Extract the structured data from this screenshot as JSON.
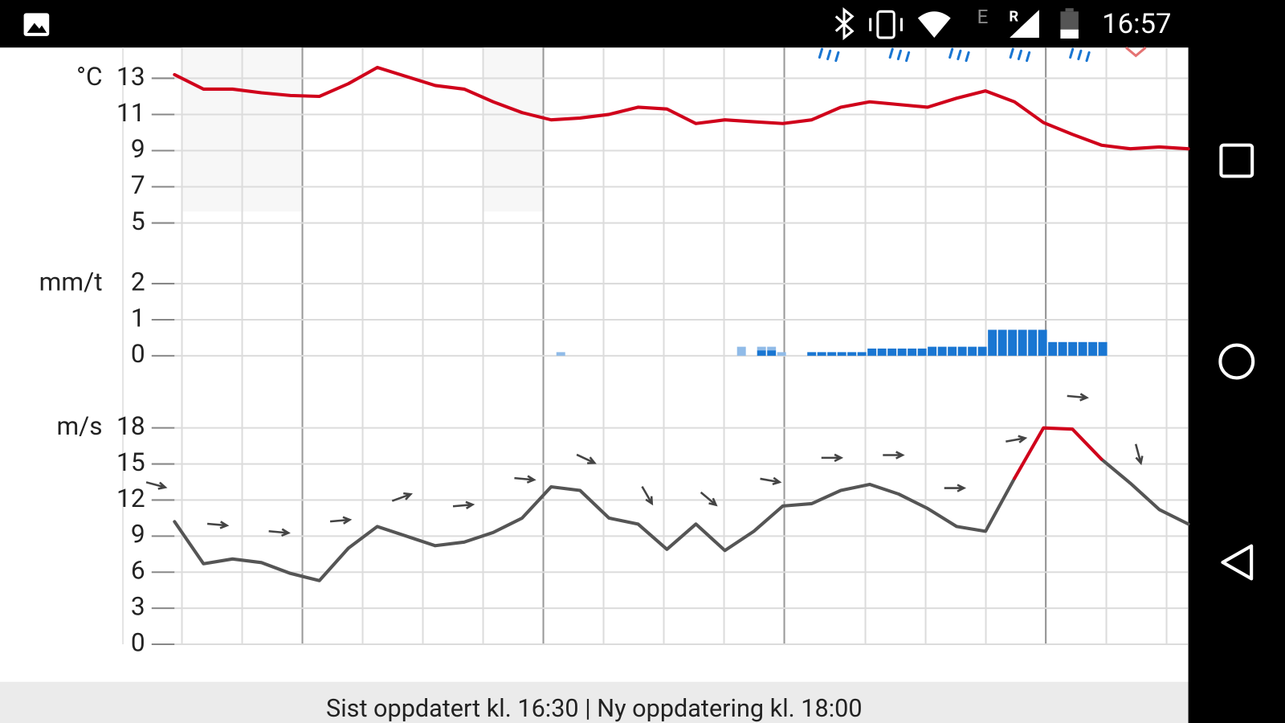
{
  "status_bar": {
    "network": "E",
    "roaming": "R",
    "time": "16:57"
  },
  "chart_data": [
    {
      "type": "line",
      "y_label": "°C",
      "color": "#d0021b",
      "categories": [
        null,
        null,
        null,
        null,
        null,
        null,
        null,
        null,
        null,
        null,
        null,
        null,
        null,
        null,
        null,
        null,
        null,
        null,
        null,
        null,
        null,
        null,
        null,
        null,
        null,
        null,
        null,
        null,
        null,
        null,
        null,
        null,
        null,
        null,
        null,
        null
      ],
      "values": [
        13.2,
        12.4,
        12.4,
        12.2,
        12.05,
        12.0,
        12.7,
        13.6,
        13.1,
        12.6,
        12.4,
        11.7,
        11.1,
        10.7,
        10.8,
        11.0,
        11.4,
        11.3,
        10.5,
        10.7,
        10.6,
        10.5,
        10.7,
        11.4,
        11.7,
        11.55,
        11.4,
        11.9,
        12.3,
        11.7,
        10.55,
        9.9,
        9.3,
        9.1,
        9.2,
        9.1
      ],
      "ylim": [
        5,
        14.7
      ],
      "yticks": [
        5,
        7,
        9,
        11,
        13
      ],
      "grid": true
    },
    {
      "type": "bar",
      "y_label": "mm/t",
      "stacked": true,
      "categories": [
        null,
        null,
        null,
        null,
        null,
        null,
        null,
        null,
        null,
        null,
        null,
        null,
        null,
        null,
        null,
        null,
        null,
        null,
        null,
        null,
        null,
        null,
        null,
        null,
        null,
        null,
        null,
        null,
        null,
        null,
        null,
        null,
        null,
        null,
        null,
        null,
        null,
        null,
        null,
        null,
        null,
        null,
        null,
        null,
        null,
        null,
        null,
        null,
        null,
        null,
        null,
        null,
        null,
        null,
        null,
        null,
        null,
        null,
        null,
        null,
        null,
        null,
        null,
        null,
        null,
        null,
        null,
        null,
        null,
        null,
        null,
        null,
        null,
        null,
        null,
        null,
        null,
        null,
        null,
        null,
        null,
        null,
        null,
        null,
        null,
        null,
        null,
        null,
        null,
        null,
        null,
        null,
        null,
        null,
        null,
        null,
        null,
        null,
        null,
        null,
        null
      ],
      "series": [
        {
          "color": "#1976d2",
          "values": [
            0,
            0,
            0,
            0,
            0,
            0,
            0,
            0,
            0,
            0,
            0,
            0,
            0,
            0,
            0,
            0,
            0,
            0,
            0,
            0,
            0,
            0,
            0,
            0,
            0,
            0,
            0,
            0,
            0,
            0,
            0,
            0,
            0,
            0,
            0,
            0,
            0,
            0,
            0,
            0,
            0,
            0,
            0,
            0,
            0,
            0,
            0,
            0,
            0,
            0,
            0,
            0,
            0,
            0,
            0,
            0,
            0,
            0,
            0.15,
            0.15,
            0,
            0,
            0,
            0.1,
            0.1,
            0.1,
            0.1,
            0.1,
            0.1,
            0.2,
            0.2,
            0.2,
            0.2,
            0.2,
            0.2,
            0.25,
            0.25,
            0.25,
            0.25,
            0.25,
            0.25,
            0.72,
            0.72,
            0.72,
            0.72,
            0.72,
            0.72,
            0.38,
            0.38,
            0.38,
            0.38,
            0.38,
            0.38,
            0,
            0,
            0,
            0,
            0,
            0,
            0,
            0
          ]
        },
        {
          "color": "#90bbe8",
          "values": [
            0,
            0,
            0,
            0,
            0,
            0,
            0,
            0,
            0,
            0,
            0,
            0,
            0,
            0,
            0,
            0,
            0,
            0,
            0,
            0,
            0,
            0,
            0,
            0,
            0,
            0,
            0,
            0,
            0,
            0,
            0,
            0,
            0,
            0,
            0,
            0,
            0,
            0,
            0.1,
            0,
            0,
            0,
            0,
            0,
            0,
            0,
            0,
            0,
            0,
            0,
            0,
            0,
            0,
            0,
            0,
            0,
            0.25,
            0,
            0.1,
            0.1,
            0.1,
            0,
            0,
            0,
            0,
            0,
            0,
            0,
            0,
            0,
            0,
            0,
            0,
            0,
            0,
            0,
            0,
            0,
            0,
            0,
            0,
            0,
            0,
            0,
            0,
            0,
            0,
            0,
            0,
            0,
            0,
            0,
            0,
            0,
            0,
            0,
            0,
            0,
            0,
            0,
            0
          ]
        }
      ],
      "ylim": [
        0,
        2
      ],
      "yticks": [
        0,
        1,
        2
      ],
      "grid": true
    },
    {
      "type": "line",
      "y_label": "m/s",
      "categories": [
        null,
        null,
        null,
        null,
        null,
        null,
        null,
        null,
        null,
        null,
        null,
        null,
        null,
        null,
        null,
        null,
        null,
        null,
        null,
        null,
        null,
        null,
        null,
        null,
        null,
        null,
        null,
        null,
        null,
        null,
        null,
        null,
        null,
        null,
        null,
        null
      ],
      "series": [
        {
          "color": "#555555",
          "values": [
            10.2,
            6.7,
            7.1,
            6.8,
            5.9,
            5.3,
            8.0,
            9.8,
            9.0,
            8.2,
            8.5,
            9.3,
            10.5,
            13.1,
            12.8,
            10.5,
            10.0,
            7.9,
            10.0,
            7.8,
            9.4,
            11.5,
            11.7,
            12.8,
            13.3,
            12.5,
            11.3,
            9.8,
            9.4,
            13.8,
            null,
            null,
            15.4,
            13.4,
            11.2,
            10.0
          ]
        },
        {
          "color": "#d0021b",
          "values": [
            null,
            null,
            null,
            null,
            null,
            null,
            null,
            null,
            null,
            null,
            null,
            null,
            null,
            null,
            null,
            null,
            null,
            null,
            null,
            null,
            null,
            null,
            null,
            null,
            null,
            null,
            null,
            null,
            null,
            13.8,
            18.0,
            17.9,
            15.4,
            null,
            null,
            null
          ]
        }
      ],
      "arrow_angles": [
        15,
        5,
        5,
        -5,
        -20,
        -5,
        5,
        25,
        60,
        40,
        10,
        0,
        0,
        0,
        -10,
        5,
        75
      ],
      "ylim": [
        0,
        18
      ],
      "yticks": [
        0,
        3,
        6,
        9,
        12,
        15,
        18
      ],
      "grid": true
    }
  ],
  "footer": {
    "text": "Sist oppdatert kl. 16:30 | Ny oppdatering kl. 18:00"
  }
}
